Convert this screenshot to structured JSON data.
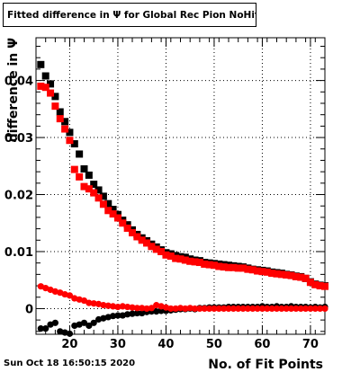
{
  "chart_data": {
    "type": "scatter",
    "title": "Fitted difference in  Ψ  for Global Rec Pion NoHits",
    "xlabel": "No. of Fit Points",
    "ylabel": "difference in  Ψ",
    "xlim": [
      13,
      73
    ],
    "ylim": [
      -0.0045,
      0.0475
    ],
    "x_ticks": [
      20,
      30,
      40,
      50,
      60,
      70
    ],
    "y_ticks": [
      0,
      0.01,
      0.02,
      0.03,
      0.04
    ],
    "y_tick_labels": [
      "0",
      "0.01",
      "0.02",
      "0.03",
      "0.04"
    ],
    "grid": true,
    "series": [
      {
        "marker": "square",
        "color": "#000000",
        "x": [
          14,
          15,
          16,
          17,
          18,
          19,
          20,
          21,
          22,
          23,
          24,
          25,
          26,
          27,
          28,
          29,
          30,
          31,
          32,
          33,
          34,
          35,
          36,
          37,
          38,
          39,
          40,
          41,
          42,
          43,
          44,
          45,
          46,
          47,
          48,
          49,
          50,
          51,
          52,
          53,
          54,
          55,
          56,
          57,
          58,
          59,
          60,
          61,
          62,
          63,
          64,
          65,
          66,
          67,
          68,
          69,
          70,
          71,
          72,
          73
        ],
        "y": [
          0.0428,
          0.0408,
          0.0394,
          0.0372,
          0.0345,
          0.0328,
          0.0309,
          0.0289,
          0.0271,
          0.0245,
          0.0234,
          0.0218,
          0.0208,
          0.0197,
          0.0184,
          0.0174,
          0.0165,
          0.0155,
          0.0147,
          0.0138,
          0.013,
          0.0124,
          0.0119,
          0.0113,
          0.0108,
          0.0103,
          0.0098,
          0.0096,
          0.0093,
          0.0091,
          0.009,
          0.0087,
          0.0085,
          0.0084,
          0.0081,
          0.008,
          0.0079,
          0.0078,
          0.0077,
          0.0076,
          0.0075,
          0.0074,
          0.0073,
          0.0071,
          0.0069,
          0.0068,
          0.0067,
          0.0066,
          0.0064,
          0.0063,
          0.0062,
          0.006,
          0.0059,
          0.0057,
          0.0056,
          0.0053,
          0.0047,
          0.0043,
          0.0041,
          0.004
        ]
      },
      {
        "marker": "square",
        "color": "#ff0000",
        "x": [
          14,
          15,
          16,
          17,
          18,
          19,
          20,
          21,
          22,
          23,
          24,
          25,
          26,
          27,
          28,
          29,
          30,
          31,
          32,
          33,
          34,
          35,
          36,
          37,
          38,
          39,
          40,
          41,
          42,
          43,
          44,
          45,
          46,
          47,
          48,
          49,
          50,
          51,
          52,
          53,
          54,
          55,
          56,
          57,
          58,
          59,
          60,
          61,
          62,
          63,
          64,
          65,
          66,
          67,
          68,
          69,
          70,
          71,
          72,
          73
        ],
        "y": [
          0.039,
          0.0388,
          0.0378,
          0.0355,
          0.0333,
          0.0315,
          0.0295,
          0.0244,
          0.0231,
          0.0214,
          0.021,
          0.0203,
          0.0194,
          0.0183,
          0.0172,
          0.0166,
          0.0159,
          0.015,
          0.0141,
          0.0133,
          0.0126,
          0.012,
          0.0115,
          0.0109,
          0.0104,
          0.01,
          0.0094,
          0.0092,
          0.0088,
          0.0087,
          0.0085,
          0.0083,
          0.0082,
          0.0081,
          0.0078,
          0.0077,
          0.0076,
          0.0074,
          0.0073,
          0.0072,
          0.0072,
          0.0071,
          0.0071,
          0.0069,
          0.0068,
          0.0066,
          0.0065,
          0.0064,
          0.0062,
          0.0061,
          0.006,
          0.0059,
          0.0058,
          0.0056,
          0.0055,
          0.0053,
          0.0046,
          0.0042,
          0.004,
          0.0039
        ]
      },
      {
        "marker": "circle",
        "color": "#000000",
        "x": [
          14,
          15,
          16,
          17,
          18,
          19,
          20,
          21,
          22,
          23,
          24,
          25,
          26,
          27,
          28,
          29,
          30,
          31,
          32,
          33,
          34,
          35,
          36,
          37,
          38,
          39,
          40,
          41,
          42,
          43,
          44,
          45,
          46,
          47,
          48,
          49,
          50,
          51,
          52,
          53,
          54,
          55,
          56,
          57,
          58,
          59,
          60,
          61,
          62,
          63,
          64,
          65,
          66,
          67,
          68,
          69,
          70,
          71,
          72,
          73
        ],
        "y": [
          -0.0035,
          -0.0035,
          -0.0028,
          -0.0025,
          -0.004,
          -0.0042,
          -0.0044,
          -0.003,
          -0.0028,
          -0.0025,
          -0.003,
          -0.0025,
          -0.0019,
          -0.0017,
          -0.0015,
          -0.0013,
          -0.0012,
          -0.0012,
          -0.001,
          -0.0009,
          -0.0008,
          -0.0008,
          -0.0006,
          -0.0005,
          -0.0005,
          -0.0004,
          -0.0004,
          -0.0003,
          -0.0002,
          -0.0001,
          -0.0001,
          0.0,
          -0.0001,
          0.0001,
          0.0001,
          0.0002,
          0.0002,
          0.0002,
          0.0002,
          0.0003,
          0.0003,
          0.0003,
          0.0003,
          0.0003,
          0.0003,
          0.0003,
          0.0004,
          0.0003,
          0.0003,
          0.0004,
          0.0003,
          0.0003,
          0.0004,
          0.0003,
          0.0003,
          0.0003,
          0.0002,
          0.0003,
          0.0002,
          0.0003
        ]
      },
      {
        "marker": "circle",
        "color": "#ff0000",
        "x": [
          14,
          15,
          16,
          17,
          18,
          19,
          20,
          21,
          22,
          23,
          24,
          25,
          26,
          27,
          28,
          29,
          30,
          31,
          32,
          33,
          34,
          35,
          36,
          37,
          38,
          39,
          40,
          41,
          42,
          43,
          44,
          45,
          46,
          47,
          48,
          49,
          50,
          51,
          52,
          53,
          54,
          55,
          56,
          57,
          58,
          59,
          60,
          61,
          62,
          63,
          64,
          65,
          66,
          67,
          68,
          69,
          70,
          71,
          72,
          73
        ],
        "y": [
          0.0039,
          0.0036,
          0.0033,
          0.003,
          0.0028,
          0.0025,
          0.0023,
          0.0018,
          0.0016,
          0.0014,
          0.001,
          0.0009,
          0.0008,
          0.0006,
          0.0005,
          0.0004,
          0.0003,
          0.0004,
          0.0003,
          0.0002,
          0.0001,
          0.0001,
          0.0,
          0.0001,
          0.0006,
          0.0004,
          0.0002,
          0.0,
          0.0,
          0.0001,
          0.0,
          0.0001,
          0.0,
          0.0,
          0.0,
          0.0,
          0.0,
          0.0,
          0.0,
          0.0,
          0.0,
          0.0,
          0.0,
          0.0,
          0.0,
          0.0,
          0.0,
          0.0,
          0.0,
          0.0,
          0.0,
          0.0,
          0.0,
          0.0,
          0.0,
          0.0,
          0.0,
          0.0,
          0.0,
          0.0
        ]
      }
    ]
  },
  "footer": {
    "timestamp": "Sun Oct 18 16:50:15 2020"
  }
}
